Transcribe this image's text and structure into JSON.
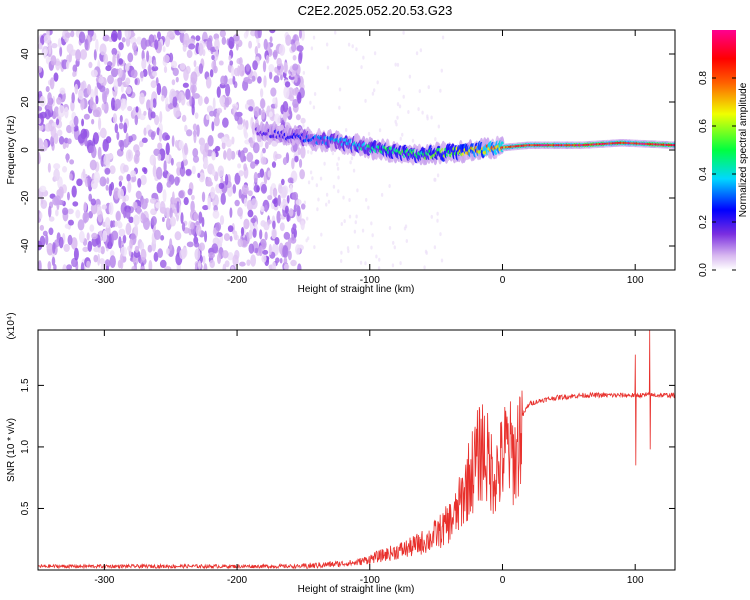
{
  "title": "C2E2.2025.052.20.53.G23",
  "chart_data": [
    {
      "type": "heatmap",
      "xlabel": "Height of straight line (km)",
      "ylabel": "Frequency (Hz)",
      "xlim": [
        -350,
        130
      ],
      "ylim": [
        -50,
        50
      ],
      "x_ticks": [
        -300,
        -200,
        -100,
        0,
        100
      ],
      "y_ticks": [
        -40,
        -20,
        0,
        20,
        40
      ],
      "grid": false,
      "colorbar": {
        "label": "Normalized spectral amplitude",
        "range": [
          0,
          1
        ],
        "ticks": [
          "0.0",
          "0.2",
          "0.4",
          "0.6",
          "0.8"
        ],
        "colormap": [
          "#ffffff",
          "#d8b8f0",
          "#7a2ee0",
          "#0000ff",
          "#00d8ff",
          "#00ff40",
          "#f0ff00",
          "#ff6000",
          "#ff0000",
          "#ff0090"
        ]
      },
      "ridge": [
        {
          "x": -185,
          "y": 8,
          "amp": 0.25
        },
        {
          "x": -150,
          "y": 5,
          "amp": 0.35
        },
        {
          "x": -120,
          "y": 3,
          "amp": 0.45
        },
        {
          "x": -100,
          "y": 1,
          "amp": 0.5
        },
        {
          "x": -80,
          "y": -1,
          "amp": 0.55
        },
        {
          "x": -60,
          "y": -2,
          "amp": 0.55
        },
        {
          "x": -40,
          "y": -1,
          "amp": 0.6
        },
        {
          "x": -20,
          "y": 0,
          "amp": 0.7
        },
        {
          "x": 0,
          "y": 1,
          "amp": 0.8
        },
        {
          "x": 20,
          "y": 2,
          "amp": 0.9
        },
        {
          "x": 60,
          "y": 2,
          "amp": 0.95
        },
        {
          "x": 90,
          "y": 3,
          "amp": 0.9
        },
        {
          "x": 130,
          "y": 2,
          "amp": 0.95
        }
      ],
      "noise_region_xmax": -150
    },
    {
      "type": "line",
      "xlabel": "Height of straight line (km)",
      "ylabel": "SNR (10 * v/v)",
      "y_multiplier_label": "(x10⁴)",
      "xlim": [
        -350,
        130
      ],
      "ylim": [
        0,
        1.95
      ],
      "x_ticks": [
        -300,
        -200,
        -100,
        0,
        100
      ],
      "y_ticks": [
        0.5,
        1.0,
        1.5
      ],
      "grid": false,
      "color": "#e8302c",
      "series": [
        {
          "x": [
            -350,
            -300,
            -250,
            -200,
            -150,
            -110,
            -90,
            -70,
            -55,
            -45,
            -35,
            -25,
            -15,
            -8,
            -3,
            3,
            10,
            15,
            20,
            30,
            40,
            60,
            80,
            95,
            100,
            105,
            110,
            115,
            120,
            130
          ],
          "y": [
            0.03,
            0.03,
            0.03,
            0.03,
            0.03,
            0.06,
            0.12,
            0.18,
            0.25,
            0.33,
            0.45,
            0.75,
            1.0,
            0.8,
            0.8,
            1.0,
            0.9,
            1.25,
            1.35,
            1.38,
            1.4,
            1.42,
            1.42,
            1.42,
            1.42,
            1.42,
            1.42,
            1.42,
            1.42,
            1.42
          ]
        }
      ],
      "spikes": [
        {
          "x": 100,
          "low": 0.85,
          "high": 1.75
        },
        {
          "x": 111,
          "low": 0.98,
          "high": 1.95
        }
      ]
    }
  ]
}
